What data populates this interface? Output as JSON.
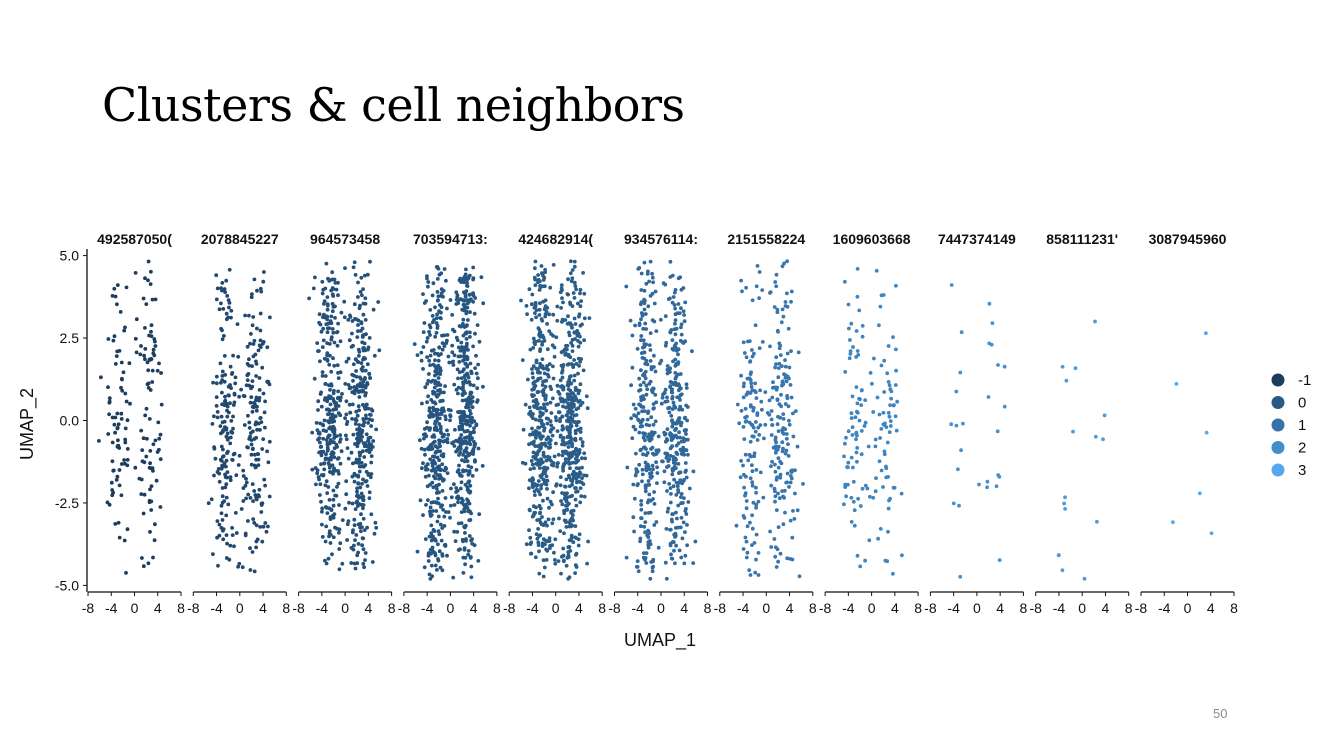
{
  "slide": {
    "title": "Clusters & cell neighbors",
    "page_number": "50"
  },
  "chart_data": {
    "type": "scatter",
    "facet_labels": [
      "492587050(",
      "2078845227",
      "964573458",
      "703594713:",
      "424682914(",
      "934576114:",
      "2151558224",
      "1609603668",
      "7447374149",
      "858111231'",
      "3087945960"
    ],
    "xlabel": "UMAP_1",
    "ylabel": "UMAP_2",
    "xlim": [
      -8,
      8
    ],
    "ylim": [
      -5.2,
      5.2
    ],
    "x_ticks": [
      -8,
      -4,
      0,
      4,
      8
    ],
    "x_tick_labels": [
      "-8",
      "-4",
      "0",
      "4",
      "8"
    ],
    "y_ticks": [
      5.0,
      2.5,
      0.0,
      -2.5,
      -5.0
    ],
    "y_tick_labels": [
      "5.0",
      "2.5",
      "0.0",
      "-2.5",
      "-5.0"
    ],
    "legend": {
      "placement": "right",
      "entries": [
        {
          "label": "-1",
          "color": "#1d3d5e"
        },
        {
          "label": "0",
          "color": "#285a85"
        },
        {
          "label": "1",
          "color": "#3672a8"
        },
        {
          "label": "2",
          "color": "#448dcb"
        },
        {
          "label": "3",
          "color": "#56a8ec"
        }
      ]
    },
    "panels": [
      {
        "point_count": 170,
        "color": "#1d3d5e"
      },
      {
        "point_count": 330,
        "color": "#22486e"
      },
      {
        "point_count": 620,
        "color": "#24507a"
      },
      {
        "point_count": 760,
        "color": "#265580"
      },
      {
        "point_count": 820,
        "color": "#2a5d88"
      },
      {
        "point_count": 560,
        "color": "#31689a"
      },
      {
        "point_count": 300,
        "color": "#3876ad"
      },
      {
        "point_count": 150,
        "color": "#3f85bf"
      },
      {
        "point_count": 28,
        "color": "#4591cf"
      },
      {
        "point_count": 16,
        "color": "#4c9bdc"
      },
      {
        "point_count": 6,
        "color": "#56a8ec"
      }
    ]
  }
}
